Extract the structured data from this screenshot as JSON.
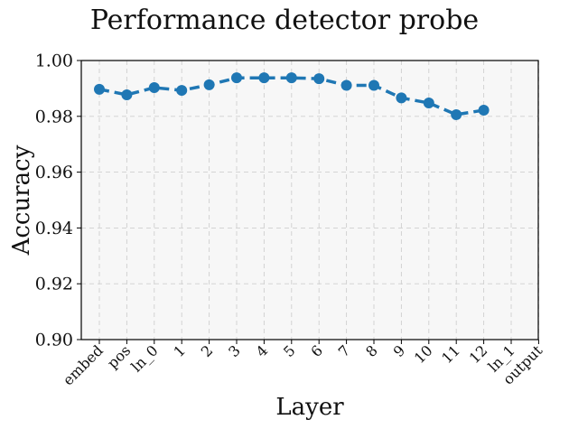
{
  "chart_data": {
    "type": "line",
    "title": "Performance detector probe",
    "xlabel": "Layer",
    "ylabel": "Accuracy",
    "categories": [
      "embed",
      "pos",
      "ln_0",
      "1",
      "2",
      "3",
      "4",
      "5",
      "6",
      "7",
      "8",
      "9",
      "10",
      "11",
      "12",
      "ln_1",
      "output"
    ],
    "ylim": [
      0.9,
      1.0
    ],
    "yticks": [
      "0.90",
      "0.92",
      "0.94",
      "0.96",
      "0.98",
      "1.00"
    ],
    "grid": true,
    "series": [
      {
        "color": "#1f77b4",
        "values": [
          0.9897,
          0.9877,
          0.9903,
          0.9893,
          0.9913,
          0.9938,
          0.9938,
          0.9938,
          0.9935,
          0.9911,
          0.9911,
          0.9866,
          0.9848,
          0.9806,
          0.9822,
          null,
          null
        ]
      }
    ]
  }
}
